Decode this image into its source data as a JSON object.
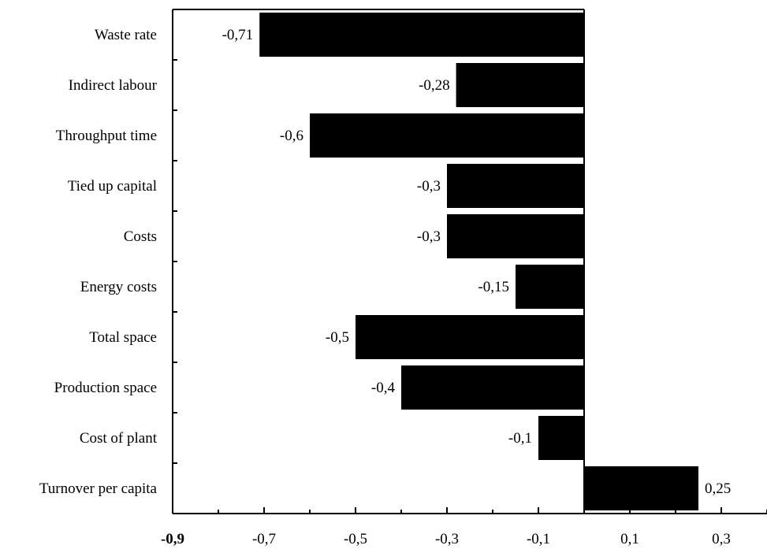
{
  "chart_data": {
    "type": "bar",
    "orientation": "horizontal",
    "categories": [
      "Waste rate",
      "Indirect labour",
      "Throughput time",
      "Tied up capital",
      "Costs",
      "Energy costs",
      "Total space",
      "Production space",
      "Cost of plant",
      "Turnover per capita"
    ],
    "values": [
      -0.71,
      -0.28,
      -0.6,
      -0.3,
      -0.3,
      -0.15,
      -0.5,
      -0.4,
      -0.1,
      0.25
    ],
    "value_labels": [
      "-0,71",
      "-0,28",
      "-0,6",
      "-0,3",
      "-0,3",
      "-0,15",
      "-0,5",
      "-0,4",
      "-0,1",
      "0,25"
    ],
    "x_ticks": [
      -0.9,
      -0.7,
      -0.5,
      -0.3,
      -0.1,
      0.1,
      0.3
    ],
    "x_tick_labels": [
      "-0,9",
      "-0,7",
      "-0,5",
      "-0,3",
      "-0,1",
      "0,1",
      "0,3"
    ],
    "xlim": [
      -0.9,
      0.4
    ],
    "bar_color": "#000000",
    "grid": false,
    "title": "",
    "xlabel": "",
    "ylabel": ""
  }
}
